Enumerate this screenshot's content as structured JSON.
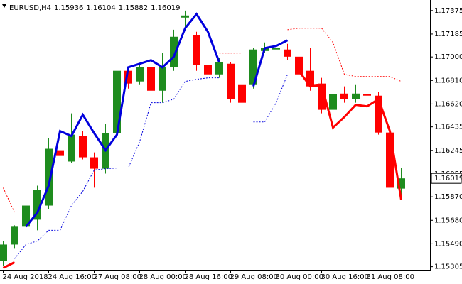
{
  "chart_data": {
    "type": "candlestick",
    "symbol": "EURUSD,H4",
    "categories": [
      "24 Aug 2018",
      null,
      null,
      null,
      "24 Aug 16:00",
      null,
      null,
      null,
      "27 Aug 08:00",
      null,
      null,
      null,
      "28 Aug 00:00",
      null,
      null,
      null,
      "28 Aug 16:00",
      null,
      null,
      null,
      "29 Aug 08:00",
      null,
      null,
      null,
      "30 Aug 00:00",
      null,
      null,
      null,
      "30 Aug 16:00",
      null,
      null,
      null,
      "31 Aug 08:00",
      null,
      null,
      null
    ],
    "open": [
      1.15353,
      1.15484,
      1.15628,
      1.15685,
      1.15799,
      1.16246,
      1.16155,
      1.16361,
      1.16189,
      1.16097,
      1.16384,
      1.16888,
      1.16802,
      1.16916,
      1.16727,
      1.16916,
      1.17318,
      1.17174,
      1.16934,
      1.16859,
      1.16945,
      1.16773,
      1.16773,
      1.17048,
      1.1706,
      1.1706,
      1.17002,
      1.16888,
      1.16785,
      1.16573,
      1.16704,
      1.16659,
      1.16699,
      1.16687,
      1.16389,
      1.15936
    ],
    "high": [
      1.15513,
      1.15639,
      1.15828,
      1.1596,
      1.16343,
      1.16315,
      1.16544,
      1.16401,
      1.16229,
      1.16458,
      1.16916,
      1.16916,
      1.16945,
      1.16945,
      1.17031,
      1.1722,
      1.17375,
      1.17203,
      1.16974,
      1.16991,
      1.16957,
      1.16831,
      1.17071,
      1.17117,
      1.17106,
      1.17106,
      1.17203,
      1.17071,
      1.16831,
      1.16773,
      1.16762,
      1.16773,
      1.16899,
      1.16716,
      1.16487,
      1.16104
    ],
    "low": [
      1.15312,
      1.15456,
      1.15599,
      1.15599,
      1.15771,
      1.16172,
      1.16143,
      1.16172,
      1.15943,
      1.16057,
      1.16343,
      1.16744,
      1.16773,
      1.16716,
      1.1663,
      1.16888,
      1.17232,
      1.16888,
      1.16842,
      1.16831,
      1.1663,
      1.16515,
      1.16744,
      1.17031,
      1.17048,
      1.16974,
      1.16831,
      1.16727,
      1.16544,
      1.16544,
      1.1663,
      1.1663,
      1.16659,
      1.16372,
      1.15839,
      1.15882
    ],
    "close": [
      1.15484,
      1.15628,
      1.15799,
      1.15925,
      1.16258,
      1.162,
      1.16372,
      1.16189,
      1.16097,
      1.16384,
      1.16888,
      1.16785,
      1.16916,
      1.16727,
      1.16916,
      1.17163,
      1.17335,
      1.16934,
      1.16859,
      1.16957,
      1.16659,
      1.1663,
      1.1706,
      1.17071,
      1.17071,
      1.17002,
      1.16859,
      1.16762,
      1.16573,
      1.16699,
      1.16659,
      1.16704,
      1.16687,
      1.16389,
      1.15943,
      1.16019
    ],
    "up_color": "#1e8c1e",
    "down_color": "#ff0000",
    "overlays": [
      {
        "color": "#0000dd",
        "style": "solid",
        "values": [
          null,
          null,
          1.15628,
          1.15742,
          1.1596,
          1.16401,
          1.16361,
          1.16533,
          1.16384,
          1.16246,
          1.16372,
          1.16916,
          1.16945,
          1.16974,
          1.16916,
          1.17002,
          1.17232,
          1.17346,
          1.17203,
          1.16957,
          null,
          null,
          1.16762,
          1.17071,
          1.17089,
          1.17134,
          null,
          null,
          null,
          null,
          null,
          null,
          null,
          null,
          null,
          null
        ]
      },
      {
        "color": "#ff0000",
        "style": "solid",
        "values": [
          1.15295,
          1.15341,
          null,
          null,
          null,
          null,
          null,
          null,
          null,
          null,
          null,
          null,
          null,
          null,
          null,
          null,
          null,
          null,
          null,
          null,
          null,
          null,
          null,
          null,
          null,
          null,
          1.16888,
          1.16762,
          1.16773,
          1.16429,
          1.16515,
          1.16613,
          1.16601,
          1.16659,
          1.16401,
          1.15845
        ]
      },
      {
        "color": "#ff0000",
        "style": "dotted",
        "values": [
          1.15943,
          1.15742,
          null,
          null,
          null,
          null,
          null,
          null,
          null,
          null,
          null,
          null,
          null,
          null,
          null,
          null,
          null,
          null,
          null,
          1.17031,
          1.17031,
          1.17031,
          null,
          null,
          null,
          1.1722,
          1.17232,
          1.17232,
          1.17232,
          1.17117,
          1.16859,
          1.16842,
          1.16842,
          1.16842,
          1.16842,
          1.16802
        ]
      },
      {
        "color": "#0000dd",
        "style": "dotted",
        "values": [
          null,
          1.1537,
          1.15484,
          1.15513,
          1.15599,
          1.15599,
          1.15799,
          1.15914,
          1.16086,
          1.16097,
          1.16103,
          1.16103,
          1.16315,
          1.1663,
          1.1663,
          1.16659,
          1.16802,
          1.16819,
          1.16831,
          1.16831,
          null,
          null,
          1.16475,
          1.16475,
          1.1663,
          1.16859,
          null,
          null,
          null,
          null,
          null,
          null,
          null,
          null,
          null,
          null
        ]
      }
    ],
    "ylim": [
      1.1528,
      1.1746
    ],
    "yticks": [
      1.17375,
      1.17185,
      {
        "value": 1.17,
        "label": "1.17000"
      },
      {
        "value": 1.1681,
        "label": "1.16810"
      },
      {
        "value": 1.1662,
        "label": "1.16620"
      },
      1.16435,
      1.16245,
      1.16055,
      {
        "value": 1.1587,
        "label": "1.15870"
      },
      {
        "value": 1.1568,
        "label": "1.15680"
      },
      {
        "value": 1.1549,
        "label": "1.15490"
      },
      1.15305
    ]
  }
}
